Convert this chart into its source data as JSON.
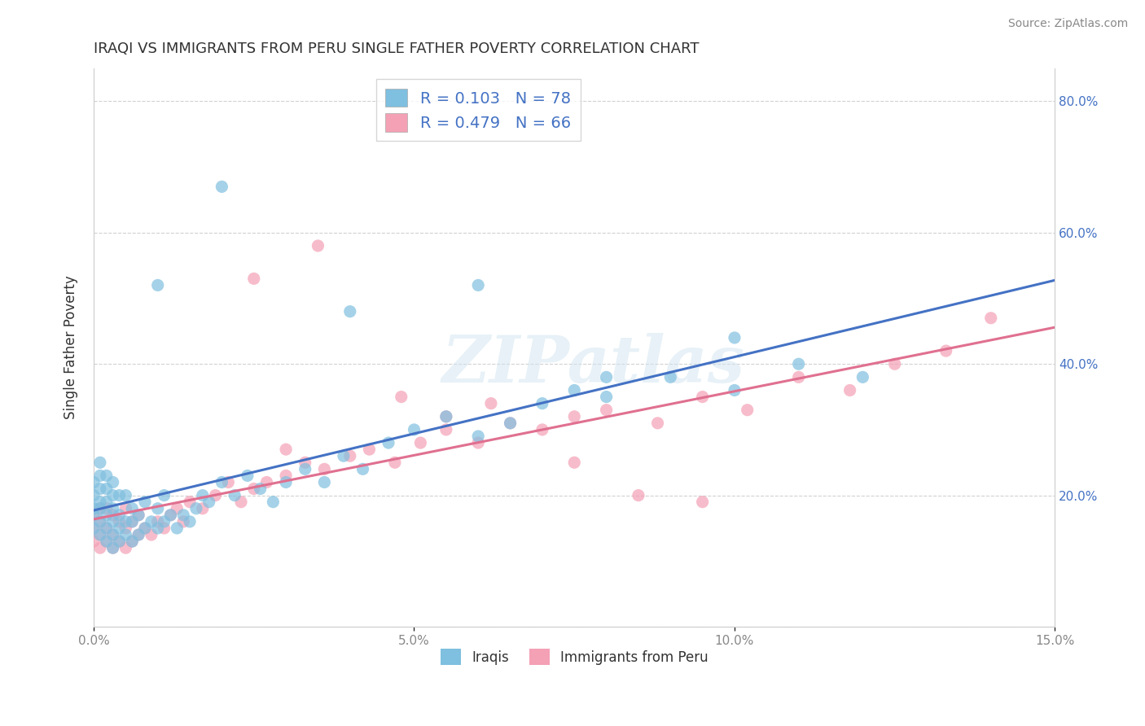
{
  "title": "IRAQI VS IMMIGRANTS FROM PERU SINGLE FATHER POVERTY CORRELATION CHART",
  "source": "Source: ZipAtlas.com",
  "ylabel": "Single Father Poverty",
  "watermark": "ZIPatlas",
  "xlim": [
    0.0,
    0.15
  ],
  "ylim": [
    0.0,
    0.85
  ],
  "xticks": [
    0.0,
    0.05,
    0.1,
    0.15
  ],
  "xtick_labels": [
    "0.0%",
    "5.0%",
    "10.0%",
    "15.0%"
  ],
  "yticks": [
    0.0,
    0.2,
    0.4,
    0.6,
    0.8
  ],
  "ytick_labels": [
    "",
    "20.0%",
    "40.0%",
    "60.0%",
    "80.0%"
  ],
  "series1_name": "Iraqis",
  "series1_color": "#7fbfdf",
  "series2_name": "Immigrants from Peru",
  "series2_color": "#f4a0b5",
  "series1_R": 0.103,
  "series1_N": 78,
  "series2_R": 0.479,
  "series2_N": 66,
  "line1_color": "#4472c4",
  "line2_color": "#e07090",
  "background_color": "#ffffff",
  "grid_color": "#cccccc",
  "title_color": "#333333",
  "axis_color": "#888888",
  "right_axis_color": "#4472c4",
  "iraqis_x": [
    0.0,
    0.0,
    0.0,
    0.0,
    0.0,
    0.001,
    0.001,
    0.001,
    0.001,
    0.001,
    0.001,
    0.001,
    0.002,
    0.002,
    0.002,
    0.002,
    0.002,
    0.002,
    0.003,
    0.003,
    0.003,
    0.003,
    0.003,
    0.003,
    0.004,
    0.004,
    0.004,
    0.004,
    0.005,
    0.005,
    0.005,
    0.006,
    0.006,
    0.006,
    0.007,
    0.007,
    0.008,
    0.008,
    0.009,
    0.01,
    0.01,
    0.011,
    0.011,
    0.012,
    0.013,
    0.014,
    0.015,
    0.016,
    0.017,
    0.018,
    0.02,
    0.022,
    0.024,
    0.026,
    0.028,
    0.03,
    0.033,
    0.036,
    0.039,
    0.042,
    0.046,
    0.05,
    0.055,
    0.06,
    0.065,
    0.07,
    0.075,
    0.08,
    0.09,
    0.1,
    0.11,
    0.12,
    0.1,
    0.08,
    0.06,
    0.04,
    0.02,
    0.01
  ],
  "iraqis_y": [
    0.15,
    0.17,
    0.18,
    0.2,
    0.22,
    0.14,
    0.16,
    0.18,
    0.19,
    0.21,
    0.23,
    0.25,
    0.13,
    0.15,
    0.17,
    0.19,
    0.21,
    0.23,
    0.12,
    0.14,
    0.16,
    0.18,
    0.2,
    0.22,
    0.13,
    0.15,
    0.17,
    0.2,
    0.14,
    0.16,
    0.2,
    0.13,
    0.16,
    0.18,
    0.14,
    0.17,
    0.15,
    0.19,
    0.16,
    0.15,
    0.18,
    0.16,
    0.2,
    0.17,
    0.15,
    0.17,
    0.16,
    0.18,
    0.2,
    0.19,
    0.22,
    0.2,
    0.23,
    0.21,
    0.19,
    0.22,
    0.24,
    0.22,
    0.26,
    0.24,
    0.28,
    0.3,
    0.32,
    0.29,
    0.31,
    0.34,
    0.36,
    0.35,
    0.38,
    0.36,
    0.4,
    0.38,
    0.44,
    0.38,
    0.52,
    0.48,
    0.67,
    0.52
  ],
  "peru_x": [
    0.0,
    0.0,
    0.0,
    0.001,
    0.001,
    0.001,
    0.001,
    0.002,
    0.002,
    0.002,
    0.003,
    0.003,
    0.003,
    0.004,
    0.004,
    0.005,
    0.005,
    0.005,
    0.006,
    0.006,
    0.007,
    0.007,
    0.008,
    0.009,
    0.01,
    0.011,
    0.012,
    0.013,
    0.014,
    0.015,
    0.017,
    0.019,
    0.021,
    0.023,
    0.025,
    0.027,
    0.03,
    0.033,
    0.036,
    0.04,
    0.043,
    0.047,
    0.051,
    0.055,
    0.06,
    0.065,
    0.07,
    0.075,
    0.08,
    0.088,
    0.095,
    0.102,
    0.11,
    0.118,
    0.125,
    0.133,
    0.14,
    0.048,
    0.055,
    0.062,
    0.025,
    0.03,
    0.035,
    0.075,
    0.085,
    0.095
  ],
  "peru_y": [
    0.13,
    0.15,
    0.17,
    0.12,
    0.14,
    0.16,
    0.18,
    0.13,
    0.15,
    0.18,
    0.12,
    0.14,
    0.17,
    0.13,
    0.16,
    0.12,
    0.15,
    0.18,
    0.13,
    0.16,
    0.14,
    0.17,
    0.15,
    0.14,
    0.16,
    0.15,
    0.17,
    0.18,
    0.16,
    0.19,
    0.18,
    0.2,
    0.22,
    0.19,
    0.21,
    0.22,
    0.23,
    0.25,
    0.24,
    0.26,
    0.27,
    0.25,
    0.28,
    0.3,
    0.28,
    0.31,
    0.3,
    0.32,
    0.33,
    0.31,
    0.35,
    0.33,
    0.38,
    0.36,
    0.4,
    0.42,
    0.47,
    0.35,
    0.32,
    0.34,
    0.53,
    0.27,
    0.58,
    0.25,
    0.2,
    0.19
  ]
}
